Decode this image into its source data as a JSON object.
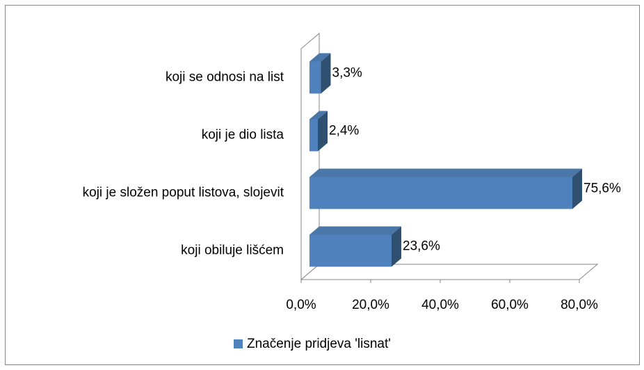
{
  "chart_data": {
    "type": "bar3d_horizontal",
    "categories": [
      "koji se odnosi na list",
      "koji je dio lista",
      "koji je složen poput listova, slojevit",
      "koji obiluje lišćem"
    ],
    "series": [
      {
        "name": "Značenje pridjeva 'lisnat'",
        "color": "#4f81bd",
        "values": [
          3.3,
          2.4,
          75.6,
          23.6
        ],
        "value_labels": [
          "3,3%",
          "2,4%",
          "75,6%",
          "23,6%"
        ]
      }
    ],
    "xlim": [
      0,
      80
    ],
    "xticks": [
      {
        "value": 0,
        "label": "0,0%"
      },
      {
        "value": 20,
        "label": "20,0%"
      },
      {
        "value": 40,
        "label": "40,0%"
      },
      {
        "value": 60,
        "label": "60,0%"
      },
      {
        "value": 80,
        "label": "80,0%"
      }
    ],
    "legend": "bottom"
  }
}
